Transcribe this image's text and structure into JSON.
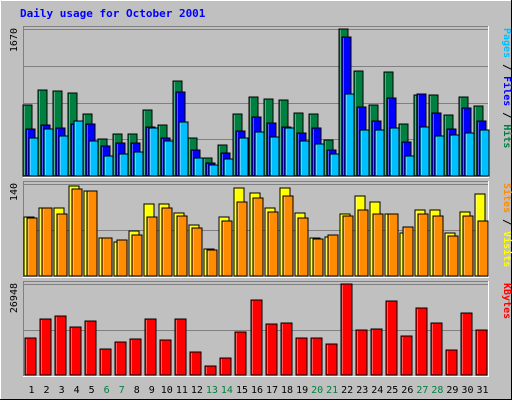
{
  "chart_data": {
    "type": "bar",
    "title": "Daily usage for October 2001",
    "days": [
      1,
      2,
      3,
      4,
      5,
      6,
      7,
      8,
      9,
      10,
      11,
      12,
      13,
      14,
      15,
      16,
      17,
      18,
      19,
      20,
      21,
      22,
      23,
      24,
      25,
      26,
      27,
      28,
      29,
      30,
      31
    ],
    "weekend_days": [
      6,
      7,
      13,
      14,
      20,
      21,
      27,
      28
    ],
    "panels": [
      {
        "id": "hits",
        "max_label": "1670",
        "ylim": [
          0,
          1670
        ],
        "series": [
          {
            "name": "Hits",
            "color": "#008040",
            "values": [
              810,
              980,
              960,
              940,
              700,
              420,
              480,
              480,
              750,
              580,
              1080,
              430,
              210,
              350,
              700,
              900,
              880,
              860,
              720,
              700,
              410,
              1670,
              1190,
              810,
              1180,
              590,
              920,
              920,
              690,
              900,
              790
            ]
          },
          {
            "name": "Files",
            "color": "#0000ff",
            "values": [
              530,
              580,
              540,
              590,
              590,
              340,
              380,
              380,
              560,
              430,
              950,
              300,
              150,
              260,
              510,
              670,
              600,
              560,
              490,
              540,
              290,
              1580,
              780,
              630,
              890,
              390,
              930,
              720,
              530,
              770,
              630
            ]
          },
          {
            "name": "Pages",
            "color": "#00bfff",
            "values": [
              430,
              530,
              460,
              620,
              400,
              230,
              250,
              270,
              540,
              400,
              610,
              200,
              120,
              190,
              430,
              500,
              440,
              540,
              400,
              360,
              250,
              930,
              520,
              520,
              550,
              230,
              560,
              460,
              470,
              490,
              520
            ]
          }
        ],
        "right_label": [
          {
            "text": "Pages",
            "color": "#00bfff"
          },
          {
            "text": " / ",
            "color": "#000000"
          },
          {
            "text": "Files",
            "color": "#0000ff"
          },
          {
            "text": " / ",
            "color": "#000000"
          },
          {
            "text": "Hits",
            "color": "#008040"
          }
        ]
      },
      {
        "id": "visits",
        "max_label": "140",
        "ylim": [
          0,
          140
        ],
        "series": [
          {
            "name": "Visits",
            "color": "#ffff00",
            "values": [
              90,
              104,
              104,
              137,
              129,
              58,
              52,
              68,
              110,
              110,
              96,
              78,
              41,
              90,
              134,
              127,
              104,
              134,
              96,
              58,
              60,
              95,
              122,
              112,
              95,
              66,
              100,
              100,
              65,
              98,
              125
            ]
          },
          {
            "name": "Sites",
            "color": "#ff8c00",
            "values": [
              88,
              104,
              95,
              133,
              129,
              58,
              55,
              63,
              90,
              104,
              92,
              73,
              39,
              84,
              113,
              118,
              97,
              122,
              88,
              57,
              63,
              92,
              101,
              94,
              95,
              75,
              94,
              92,
              61,
              91,
              83
            ]
          }
        ],
        "right_label": [
          {
            "text": "Sites",
            "color": "#ff8c00"
          },
          {
            "text": " / ",
            "color": "#000000"
          },
          {
            "text": "Visits",
            "color": "#ffff00"
          }
        ]
      },
      {
        "id": "kbytes",
        "max_label": "26948",
        "ylim": [
          0,
          26948
        ],
        "series": [
          {
            "name": "KBytes",
            "color": "#ff0000",
            "values": [
              10850,
              16700,
              17400,
              14100,
              15950,
              7800,
              9900,
              10550,
              16500,
              10500,
              16700,
              6800,
              2800,
              4900,
              12700,
              22350,
              15000,
              15300,
              10900,
              11000,
              9300,
              26948,
              13350,
              13650,
              21850,
              11450,
              19700,
              15350,
              7550,
              18350,
              13350
            ]
          }
        ],
        "right_label": [
          {
            "text": "KBytes",
            "color": "#ff0000"
          }
        ]
      }
    ]
  }
}
